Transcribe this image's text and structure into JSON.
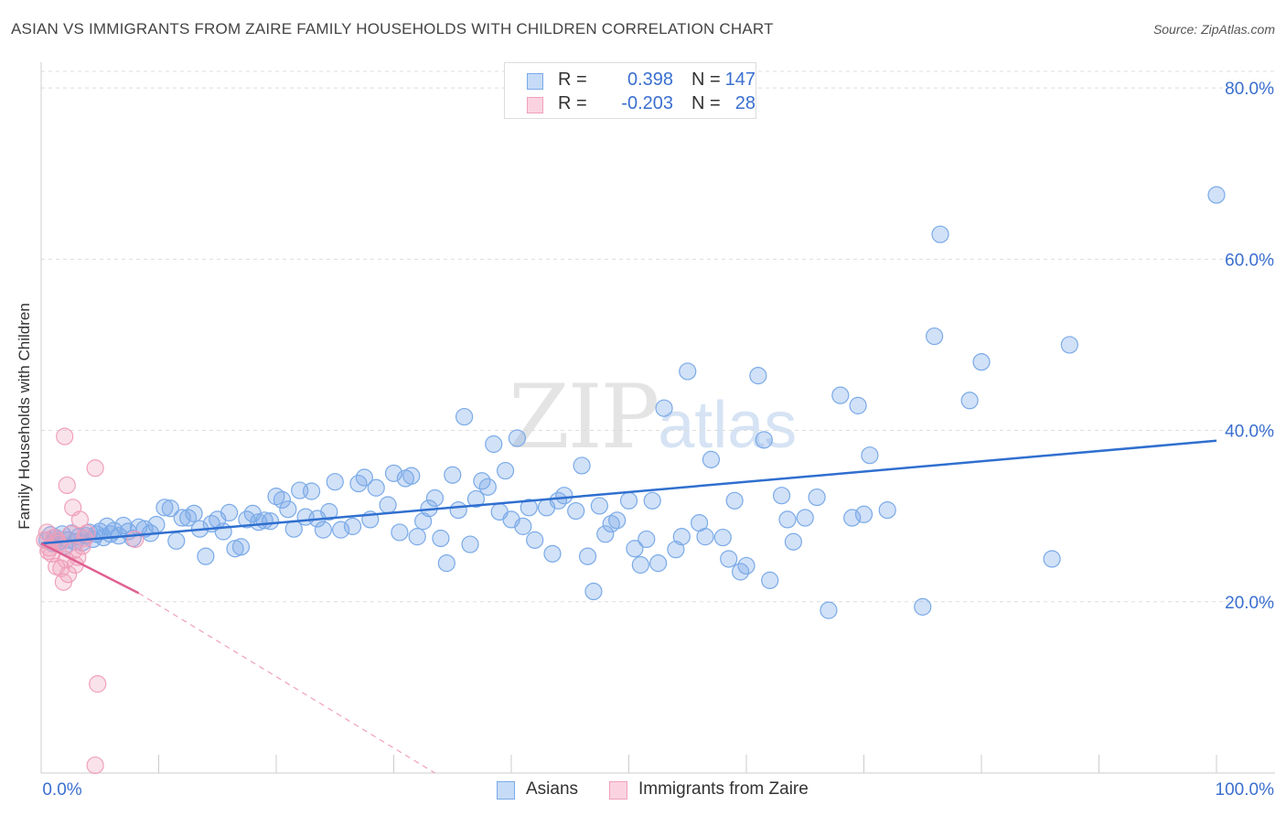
{
  "header": {
    "title": "ASIAN VS IMMIGRANTS FROM ZAIRE FAMILY HOUSEHOLDS WITH CHILDREN CORRELATION CHART",
    "source": "Source: ZipAtlas.com"
  },
  "watermark": {
    "zip": "ZIP",
    "atlas": "atlas"
  },
  "stats": [
    {
      "r_label": "R =",
      "r_value": "0.398",
      "n_label": "N =",
      "n_value": "147",
      "color": "#7aaae8"
    },
    {
      "r_label": "R =",
      "r_value": "-0.203",
      "n_label": "N =",
      "n_value": "28",
      "color": "#f0a0ba"
    }
  ],
  "legend": [
    {
      "label": "Asians",
      "color": "#7aaae8"
    },
    {
      "label": "Immigrants from Zaire",
      "color": "#f0a0ba"
    }
  ],
  "colors": {
    "blue": "#7aaae8",
    "blue_line": "#2f6fcf",
    "pink": "#f0a0ba",
    "pink_line": "#e06090",
    "axis_text": "#3a6fd0",
    "grid": "#dddddd"
  },
  "chart_data": {
    "type": "scatter",
    "title": "ASIAN VS IMMIGRANTS FROM ZAIRE FAMILY HOUSEHOLDS WITH CHILDREN CORRELATION CHART",
    "xlabel": "",
    "ylabel": "Family Households with Children",
    "xlim": [
      0,
      100
    ],
    "ylim": [
      0,
      83
    ],
    "x_tick_labels": [
      "0.0%",
      "100.0%"
    ],
    "y_ticks": [
      20,
      40,
      60,
      80
    ],
    "y_tick_labels": [
      "20.0%",
      "40.0%",
      "60.0%",
      "80.0%"
    ],
    "grid": true,
    "legend_position": "bottom",
    "series": [
      {
        "name": "Asians",
        "trend": [
          [
            0,
            26.8
          ],
          [
            100,
            38.8
          ]
        ],
        "points": [
          [
            0.5,
            27.2
          ],
          [
            0.8,
            27.8
          ],
          [
            1.0,
            26.8
          ],
          [
            1.2,
            27.5
          ],
          [
            1.5,
            27.0
          ],
          [
            1.8,
            27.9
          ],
          [
            2.0,
            26.5
          ],
          [
            2.3,
            27.2
          ],
          [
            2.6,
            28.0
          ],
          [
            2.9,
            27.0
          ],
          [
            3.2,
            27.6
          ],
          [
            3.5,
            26.9
          ],
          [
            3.8,
            27.7
          ],
          [
            4.1,
            28.1
          ],
          [
            4.4,
            27.3
          ],
          [
            4.7,
            27.9
          ],
          [
            5.0,
            28.2
          ],
          [
            5.3,
            27.5
          ],
          [
            5.6,
            28.8
          ],
          [
            5.9,
            27.9
          ],
          [
            6.2,
            28.3
          ],
          [
            6.6,
            27.7
          ],
          [
            7.0,
            28.9
          ],
          [
            7.4,
            28.2
          ],
          [
            7.8,
            27.4
          ],
          [
            8.3,
            28.7
          ],
          [
            8.8,
            28.5
          ],
          [
            9.3,
            28.0
          ],
          [
            9.8,
            29.0
          ],
          [
            10.5,
            31.0
          ],
          [
            11.0,
            30.9
          ],
          [
            11.5,
            27.1
          ],
          [
            12.0,
            29.8
          ],
          [
            12.5,
            29.8
          ],
          [
            13.0,
            30.3
          ],
          [
            13.5,
            28.5
          ],
          [
            14.0,
            25.3
          ],
          [
            14.5,
            29.1
          ],
          [
            15.0,
            29.6
          ],
          [
            15.5,
            28.2
          ],
          [
            16.0,
            30.4
          ],
          [
            16.5,
            26.2
          ],
          [
            17.0,
            26.4
          ],
          [
            17.5,
            29.6
          ],
          [
            18.0,
            30.3
          ],
          [
            18.5,
            29.3
          ],
          [
            19.0,
            29.5
          ],
          [
            19.5,
            29.4
          ],
          [
            20.0,
            32.3
          ],
          [
            20.5,
            31.9
          ],
          [
            21.0,
            30.8
          ],
          [
            21.5,
            28.5
          ],
          [
            22.0,
            33.0
          ],
          [
            22.5,
            29.9
          ],
          [
            23.0,
            32.9
          ],
          [
            23.5,
            29.7
          ],
          [
            24.0,
            28.4
          ],
          [
            24.5,
            30.5
          ],
          [
            25.0,
            34.0
          ],
          [
            25.5,
            28.4
          ],
          [
            26.5,
            28.8
          ],
          [
            27.0,
            33.8
          ],
          [
            27.5,
            34.5
          ],
          [
            28.0,
            29.6
          ],
          [
            28.5,
            33.3
          ],
          [
            29.5,
            31.3
          ],
          [
            30.0,
            35.0
          ],
          [
            30.5,
            28.1
          ],
          [
            31.0,
            34.4
          ],
          [
            31.5,
            34.7
          ],
          [
            32.0,
            27.6
          ],
          [
            32.5,
            29.4
          ],
          [
            33.0,
            30.9
          ],
          [
            33.5,
            32.1
          ],
          [
            34.0,
            27.4
          ],
          [
            34.5,
            24.5
          ],
          [
            35.0,
            34.8
          ],
          [
            35.5,
            30.7
          ],
          [
            36.0,
            41.6
          ],
          [
            36.5,
            26.7
          ],
          [
            37.0,
            32.0
          ],
          [
            37.5,
            34.1
          ],
          [
            38.0,
            33.4
          ],
          [
            38.5,
            38.4
          ],
          [
            39.0,
            30.5
          ],
          [
            39.5,
            35.3
          ],
          [
            40.0,
            29.6
          ],
          [
            40.5,
            39.1
          ],
          [
            41.0,
            28.8
          ],
          [
            41.5,
            31.0
          ],
          [
            42.0,
            27.2
          ],
          [
            43.0,
            31.0
          ],
          [
            43.5,
            25.6
          ],
          [
            44.0,
            31.8
          ],
          [
            44.5,
            32.4
          ],
          [
            45.5,
            30.6
          ],
          [
            46.0,
            35.9
          ],
          [
            46.5,
            25.3
          ],
          [
            47.0,
            21.2
          ],
          [
            47.5,
            31.2
          ],
          [
            48.0,
            27.9
          ],
          [
            48.5,
            29.1
          ],
          [
            49.0,
            29.5
          ],
          [
            50.0,
            31.8
          ],
          [
            50.5,
            26.2
          ],
          [
            51.0,
            24.3
          ],
          [
            51.5,
            27.3
          ],
          [
            52.0,
            31.8
          ],
          [
            52.5,
            24.5
          ],
          [
            53.0,
            42.6
          ],
          [
            54.0,
            26.1
          ],
          [
            54.5,
            27.6
          ],
          [
            55.0,
            46.9
          ],
          [
            56.0,
            29.2
          ],
          [
            56.5,
            27.6
          ],
          [
            57.0,
            36.6
          ],
          [
            58.0,
            27.5
          ],
          [
            58.5,
            25.0
          ],
          [
            59.0,
            31.8
          ],
          [
            59.5,
            23.5
          ],
          [
            60.0,
            24.2
          ],
          [
            61.0,
            46.4
          ],
          [
            61.5,
            38.9
          ],
          [
            62.0,
            22.5
          ],
          [
            63.0,
            32.4
          ],
          [
            63.5,
            29.6
          ],
          [
            64.0,
            27.0
          ],
          [
            65.0,
            29.8
          ],
          [
            66.0,
            32.2
          ],
          [
            67.0,
            19.0
          ],
          [
            68.0,
            44.1
          ],
          [
            69.0,
            29.8
          ],
          [
            69.5,
            42.9
          ],
          [
            70.0,
            30.2
          ],
          [
            70.5,
            37.1
          ],
          [
            72.0,
            30.7
          ],
          [
            75.0,
            19.4
          ],
          [
            76.0,
            51.0
          ],
          [
            76.5,
            62.9
          ],
          [
            79.0,
            43.5
          ],
          [
            80.0,
            48.0
          ],
          [
            86.0,
            25.0
          ],
          [
            87.5,
            50.0
          ],
          [
            100.0,
            67.5
          ]
        ]
      },
      {
        "name": "Immigrants from Zaire",
        "trend": [
          [
            0,
            26.8
          ],
          [
            8.3,
            21.0
          ]
        ],
        "trend_extension": [
          [
            8.3,
            21.0
          ],
          [
            33.5,
            0
          ]
        ],
        "points": [
          [
            0.3,
            27.2
          ],
          [
            0.5,
            28.1
          ],
          [
            0.7,
            26.3
          ],
          [
            0.9,
            25.6
          ],
          [
            1.1,
            27.5
          ],
          [
            1.3,
            24.1
          ],
          [
            1.5,
            26.8
          ],
          [
            1.7,
            23.9
          ],
          [
            1.9,
            22.3
          ],
          [
            2.1,
            24.9
          ],
          [
            2.3,
            23.2
          ],
          [
            2.5,
            27.9
          ],
          [
            2.7,
            31.0
          ],
          [
            2.9,
            24.3
          ],
          [
            3.1,
            25.2
          ],
          [
            3.3,
            29.6
          ],
          [
            3.5,
            26.5
          ],
          [
            3.7,
            27.4
          ],
          [
            3.9,
            28.0
          ],
          [
            2.0,
            39.3
          ],
          [
            2.2,
            33.6
          ],
          [
            4.6,
            35.6
          ],
          [
            4.8,
            10.4
          ],
          [
            4.6,
            0.9
          ],
          [
            8.0,
            27.3
          ],
          [
            0.6,
            25.9
          ],
          [
            1.4,
            27.1
          ],
          [
            2.8,
            26.0
          ]
        ]
      }
    ]
  }
}
